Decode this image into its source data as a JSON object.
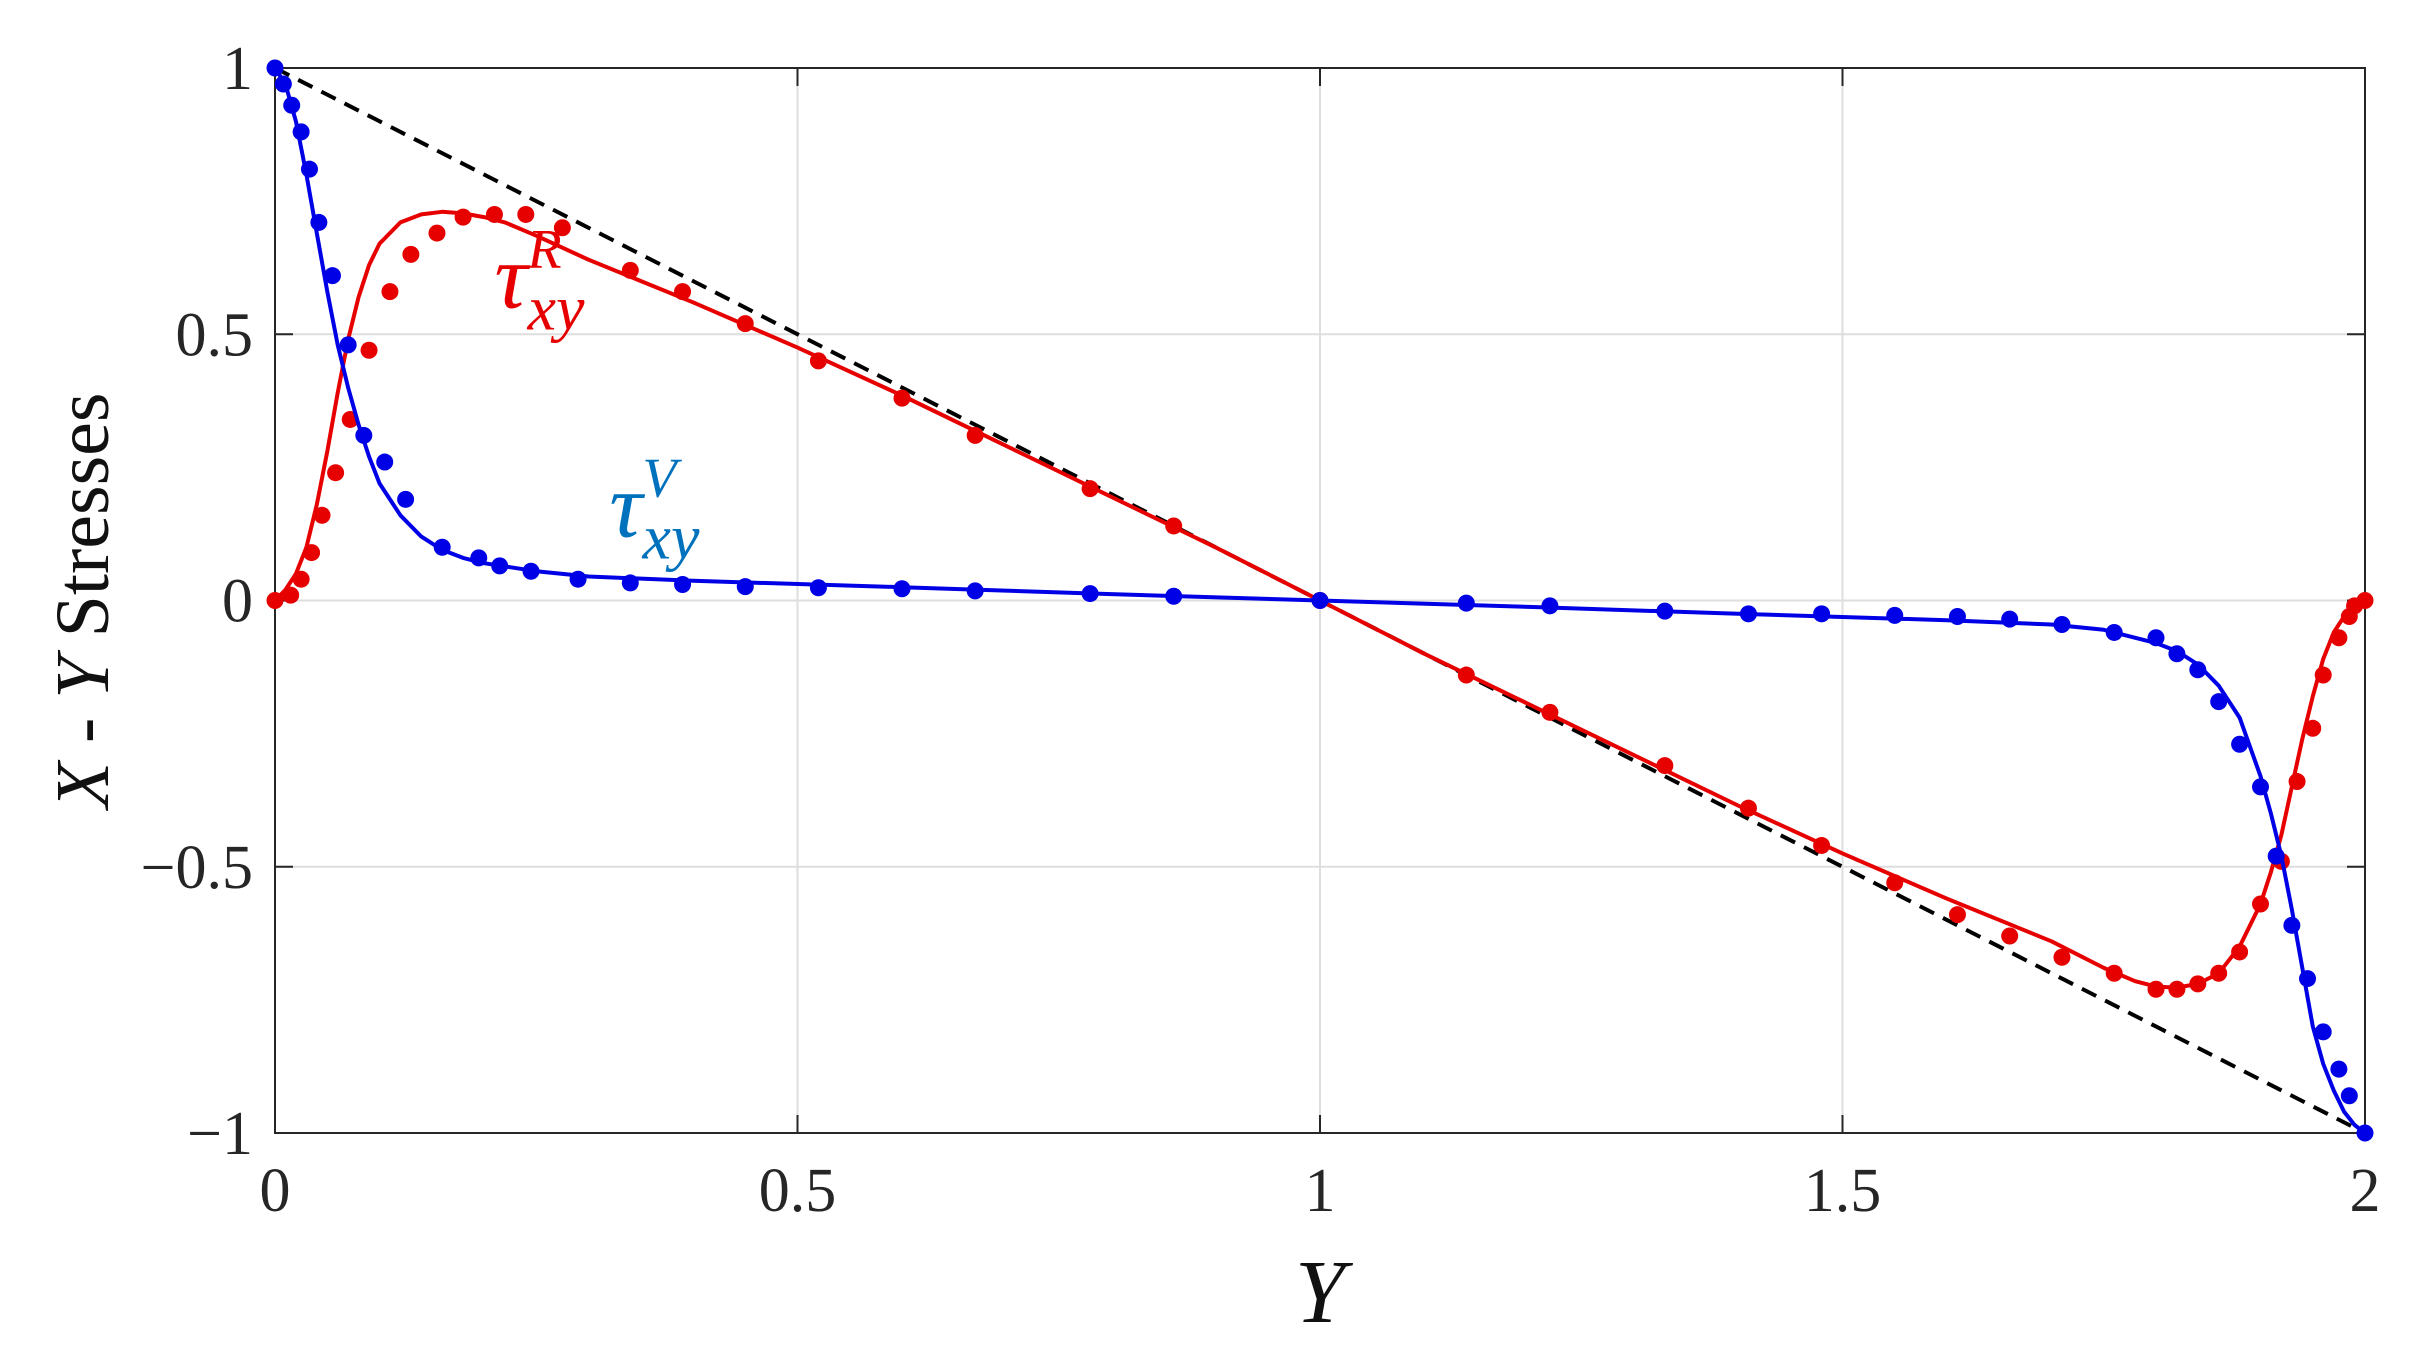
{
  "chart_data": {
    "type": "line",
    "xlabel": "Y",
    "ylabel": {
      "part1": "X",
      "part2": " - ",
      "part3": "Y",
      "part4": " Stresses"
    },
    "xlim": [
      0,
      2
    ],
    "ylim": [
      -1,
      1
    ],
    "x_ticks": [
      0,
      0.5,
      1,
      1.5,
      2
    ],
    "y_ticks": [
      -1,
      -0.5,
      0,
      0.5,
      1
    ],
    "x_tick_labels": [
      "0",
      "0.5",
      "1",
      "1.5",
      "2"
    ],
    "y_tick_labels": [
      "−1",
      "−0.5",
      "0",
      "0.5",
      "1"
    ],
    "grid": true,
    "annotations": [
      {
        "symbol": "τ",
        "sub": "xy",
        "sup": "R",
        "color": "#e60000",
        "x": 0.21,
        "y": 0.55
      },
      {
        "symbol": "τ",
        "sub": "xy",
        "sup": "V",
        "color": "#0072bd",
        "x": 0.32,
        "y": 0.12
      }
    ],
    "reference_line": {
      "style": "dashed",
      "color": "#000000",
      "x": [
        0,
        2
      ],
      "y": [
        1,
        -1
      ]
    },
    "series": [
      {
        "kind": "curve",
        "color": "#e60000",
        "x": [
          0,
          0.01,
          0.02,
          0.03,
          0.04,
          0.05,
          0.06,
          0.07,
          0.08,
          0.09,
          0.1,
          0.12,
          0.14,
          0.16,
          0.18,
          0.2,
          0.22,
          0.25,
          0.3,
          0.4,
          0.5,
          0.6,
          0.7,
          0.8,
          0.9,
          1.0,
          1.1,
          1.2,
          1.3,
          1.4,
          1.5,
          1.6,
          1.7,
          1.75,
          1.78,
          1.8,
          1.82,
          1.84,
          1.86,
          1.88,
          1.9,
          1.91,
          1.92,
          1.93,
          1.94,
          1.95,
          1.96,
          1.97,
          1.98,
          1.99,
          2.0
        ],
        "y": [
          0,
          0.02,
          0.05,
          0.1,
          0.18,
          0.28,
          0.39,
          0.49,
          0.57,
          0.63,
          0.67,
          0.71,
          0.725,
          0.73,
          0.727,
          0.72,
          0.71,
          0.685,
          0.64,
          0.56,
          0.475,
          0.385,
          0.29,
          0.195,
          0.1,
          0.0,
          -0.1,
          -0.195,
          -0.29,
          -0.385,
          -0.475,
          -0.56,
          -0.64,
          -0.69,
          -0.715,
          -0.725,
          -0.727,
          -0.72,
          -0.7,
          -0.65,
          -0.57,
          -0.51,
          -0.44,
          -0.35,
          -0.26,
          -0.18,
          -0.11,
          -0.06,
          -0.03,
          -0.01,
          0
        ]
      },
      {
        "kind": "points",
        "color": "#e60000",
        "x": [
          0,
          0.015,
          0.025,
          0.035,
          0.045,
          0.058,
          0.072,
          0.09,
          0.11,
          0.13,
          0.155,
          0.18,
          0.21,
          0.24,
          0.275,
          0.34,
          0.39,
          0.45,
          0.52,
          0.6,
          0.67,
          0.78,
          0.86,
          1.0,
          1.14,
          1.22,
          1.33,
          1.41,
          1.48,
          1.55,
          1.61,
          1.66,
          1.71,
          1.76,
          1.8,
          1.82,
          1.84,
          1.86,
          1.88,
          1.9,
          1.92,
          1.935,
          1.95,
          1.96,
          1.975,
          1.985,
          1.99,
          2.0
        ],
        "y": [
          0,
          0.01,
          0.04,
          0.09,
          0.16,
          0.24,
          0.34,
          0.47,
          0.58,
          0.65,
          0.69,
          0.72,
          0.725,
          0.725,
          0.7,
          0.62,
          0.58,
          0.52,
          0.45,
          0.38,
          0.31,
          0.21,
          0.14,
          0.0,
          -0.14,
          -0.21,
          -0.31,
          -0.39,
          -0.46,
          -0.53,
          -0.59,
          -0.63,
          -0.67,
          -0.7,
          -0.73,
          -0.73,
          -0.72,
          -0.7,
          -0.66,
          -0.57,
          -0.49,
          -0.34,
          -0.24,
          -0.14,
          -0.07,
          -0.03,
          -0.01,
          0
        ]
      },
      {
        "kind": "curve",
        "color": "#0000e6",
        "x": [
          0,
          0.01,
          0.02,
          0.03,
          0.04,
          0.05,
          0.06,
          0.07,
          0.08,
          0.09,
          0.1,
          0.12,
          0.14,
          0.16,
          0.18,
          0.2,
          0.25,
          0.3,
          0.4,
          0.6,
          0.8,
          1.0,
          1.2,
          1.4,
          1.6,
          1.7,
          1.75,
          1.8,
          1.82,
          1.84,
          1.86,
          1.88,
          1.9,
          1.91,
          1.92,
          1.93,
          1.94,
          1.95,
          1.96,
          1.97,
          1.98,
          1.99,
          2.0
        ],
        "y": [
          1,
          0.97,
          0.9,
          0.8,
          0.69,
          0.58,
          0.48,
          0.4,
          0.33,
          0.27,
          0.22,
          0.16,
          0.12,
          0.095,
          0.08,
          0.07,
          0.055,
          0.045,
          0.037,
          0.025,
          0.012,
          0.0,
          -0.012,
          -0.025,
          -0.037,
          -0.045,
          -0.055,
          -0.08,
          -0.095,
          -0.12,
          -0.16,
          -0.22,
          -0.33,
          -0.4,
          -0.48,
          -0.58,
          -0.69,
          -0.8,
          -0.87,
          -0.92,
          -0.96,
          -0.985,
          -1
        ]
      },
      {
        "kind": "points",
        "color": "#0000e6",
        "x": [
          0,
          0.008,
          0.016,
          0.025,
          0.033,
          0.042,
          0.055,
          0.07,
          0.085,
          0.105,
          0.125,
          0.16,
          0.195,
          0.215,
          0.245,
          0.29,
          0.34,
          0.39,
          0.45,
          0.52,
          0.6,
          0.67,
          0.78,
          0.86,
          1.0,
          1.14,
          1.22,
          1.33,
          1.41,
          1.48,
          1.55,
          1.61,
          1.66,
          1.71,
          1.76,
          1.8,
          1.82,
          1.84,
          1.86,
          1.88,
          1.9,
          1.915,
          1.93,
          1.945,
          1.96,
          1.975,
          1.985,
          2.0
        ],
        "y": [
          1,
          0.97,
          0.93,
          0.88,
          0.81,
          0.71,
          0.61,
          0.48,
          0.31,
          0.26,
          0.19,
          0.1,
          0.08,
          0.065,
          0.055,
          0.04,
          0.033,
          0.03,
          0.026,
          0.024,
          0.022,
          0.018,
          0.013,
          0.008,
          0.0,
          -0.005,
          -0.01,
          -0.02,
          -0.025,
          -0.025,
          -0.028,
          -0.03,
          -0.035,
          -0.045,
          -0.06,
          -0.07,
          -0.1,
          -0.13,
          -0.19,
          -0.27,
          -0.35,
          -0.48,
          -0.61,
          -0.71,
          -0.81,
          -0.88,
          -0.93,
          -1
        ]
      }
    ]
  }
}
